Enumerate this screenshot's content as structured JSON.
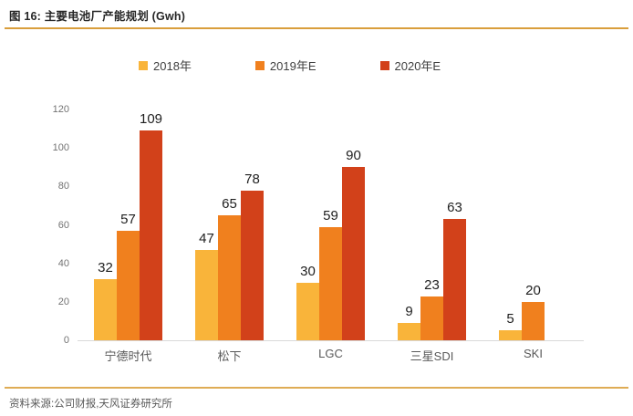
{
  "header": {
    "title": "图 16: 主要电池厂产能规划 (Gwh)"
  },
  "footer": {
    "source": "资料来源:公司财报,天风证券研究所"
  },
  "theme": {
    "accent_line": "#D99E3C",
    "axis_line": "#D9D9D9",
    "label_text": "#1F1F1F",
    "muted_text": "#595959"
  },
  "chart_data": {
    "type": "bar",
    "title": "主要电池厂产能规划 (Gwh)",
    "categories": [
      "宁德时代",
      "松下",
      "LGC",
      "三星SDI",
      "SKI"
    ],
    "series": [
      {
        "name": "2018年",
        "color": "#F9B43A",
        "values": [
          32,
          47,
          30,
          9,
          5
        ]
      },
      {
        "name": "2019年E",
        "color": "#F0801E",
        "values": [
          57,
          65,
          59,
          23,
          20
        ]
      },
      {
        "name": "2020年E",
        "color": "#D2411A",
        "values": [
          109,
          78,
          90,
          63,
          null
        ]
      }
    ],
    "xlabel": "",
    "ylabel": "",
    "ylim": [
      0,
      120
    ],
    "yticks": [
      0,
      20,
      40,
      60,
      80,
      100,
      120
    ],
    "grid": false,
    "legend_position": "top",
    "data_labels": true
  }
}
